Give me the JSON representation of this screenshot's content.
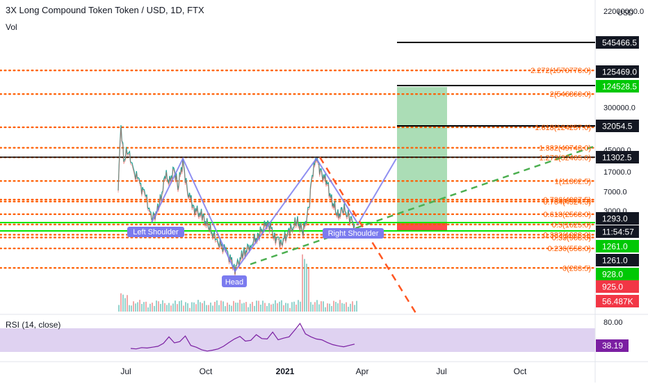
{
  "header": {
    "title": "3X Long Compound Token Token / USD, 1D, FTX",
    "vol_label": "Vol",
    "rsi_label": "RSI (14, close)",
    "currency": "USD"
  },
  "colors": {
    "fib": "#ff5d00",
    "green": "#00e600",
    "blue_pattern": "#7b7bef",
    "dashed_green": "#4caf50",
    "dashed_red": "#ff5722",
    "target_zone": "#8fd19e",
    "stop_zone": "#ff4d4d",
    "rsi_band": "#d7c7ee",
    "rsi_line": "#7b1fa2"
  },
  "chart_data": {
    "type": "line",
    "symbol": "3X Long Compound Token Token / USD",
    "interval": "1D",
    "exchange": "FTX",
    "y_scale": "log",
    "price_axis_ticks": [
      "22000000.0",
      "800000.0",
      "300000.0",
      "45000.0",
      "17000.0",
      "7000.0",
      "3000.0"
    ],
    "x_ticks": [
      "Jul",
      "Oct",
      "2021",
      "Apr",
      "Jul",
      "Oct"
    ],
    "fib_levels": [
      {
        "label": "2.272(1570778.0)"
      },
      {
        "label": "2(546860.0)"
      },
      {
        "label": "1.618(124257.0)"
      },
      {
        "label": "1.382(49743.0)"
      },
      {
        "label": "1.272(32465.0)"
      },
      {
        "label": "1(11302.5)"
      },
      {
        "label": "0.786(4927.5)"
      },
      {
        "label": "0.764(4524.3)"
      },
      {
        "label": "0.618(2568.0)"
      },
      {
        "label": "0.5(1625.0)"
      },
      {
        "label": "0.382(1028.0)"
      },
      {
        "label": "0.33(908.0)"
      },
      {
        "label": "0.236(558.0)"
      },
      {
        "label": "0(233.5)"
      }
    ],
    "price_badges": [
      {
        "text": "545466.5",
        "style": "dark"
      },
      {
        "text": "125469.0",
        "style": "dark"
      },
      {
        "text": "124528.5",
        "style": "green"
      },
      {
        "text": "32054.5",
        "style": "dark"
      },
      {
        "text": "11302.5",
        "style": "dark"
      },
      {
        "text": "1293.0",
        "style": "dark"
      },
      {
        "text": "11:54:57",
        "style": "dark"
      },
      {
        "text": "1261.0",
        "style": "green"
      },
      {
        "text": "1261.0",
        "style": "dark"
      },
      {
        "text": "928.0",
        "style": "green"
      },
      {
        "text": "925.0",
        "style": "red"
      },
      {
        "text": "56.487K",
        "style": "red"
      }
    ],
    "pattern_labels": [
      "Left Shoulder",
      "Head",
      "Right Shoulder"
    ],
    "rsi": {
      "name": "RSI (14, close)",
      "current": "38.19",
      "tick": "80.00",
      "series": [
        28,
        27,
        30,
        29,
        31,
        33,
        40,
        55,
        41,
        44,
        57,
        35,
        31,
        25,
        22,
        24,
        27,
        33,
        42,
        50,
        56,
        45,
        47,
        60,
        51,
        50,
        66,
        48,
        52,
        55,
        70,
        86,
        62,
        55,
        50,
        48,
        42,
        37,
        34,
        32,
        35,
        38
      ]
    }
  }
}
